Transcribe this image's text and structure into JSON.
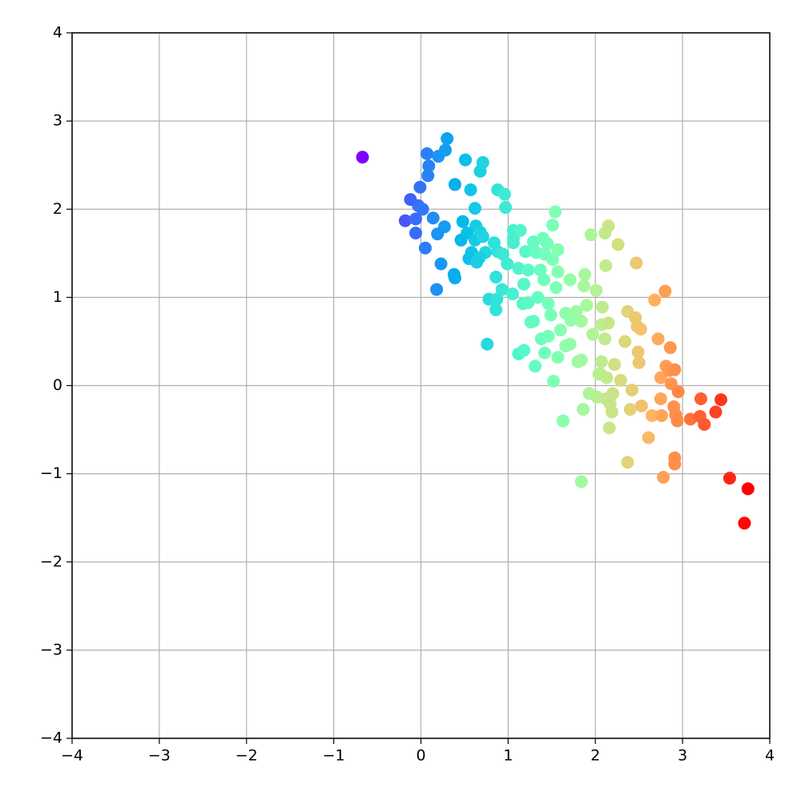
{
  "chart_data": {
    "type": "scatter",
    "colormap": "rainbow",
    "grid": true,
    "xlim": [
      -4,
      4
    ],
    "ylim": [
      -4,
      4
    ],
    "xticks": [
      {
        "value": -4,
        "label": "−4"
      },
      {
        "value": -3,
        "label": "−3"
      },
      {
        "value": -2,
        "label": "−2"
      },
      {
        "value": -1,
        "label": "−1"
      },
      0,
      1,
      2,
      3,
      4
    ],
    "yticks": [
      {
        "value": -4,
        "label": "−4"
      },
      {
        "value": -3,
        "label": "−3"
      },
      {
        "value": -2,
        "label": "−2"
      },
      {
        "value": -1,
        "label": "−1"
      },
      0,
      1,
      2,
      3,
      4
    ],
    "x": [
      -0.67,
      0.3,
      0.07,
      0.2,
      0.28,
      0.09,
      0.08,
      -0.01,
      -0.12,
      -0.03,
      0.02,
      -0.18,
      -0.06,
      0.14,
      0.27,
      0.19,
      -0.06,
      0.05,
      0.23,
      0.38,
      0.39,
      0.18,
      0.51,
      0.71,
      0.68,
      0.39,
      0.57,
      0.62,
      0.88,
      0.96,
      0.97,
      0.48,
      0.63,
      0.68,
      0.46,
      0.53,
      0.62,
      0.71,
      0.58,
      0.74,
      0.67,
      0.55,
      0.64,
      0.84,
      0.88,
      0.94,
      0.86,
      0.78,
      0.87,
      0.86,
      0.76,
      0.93,
      1.05,
      0.99,
      1.06,
      1.06,
      1.06,
      1.14,
      1.12,
      1.2,
      1.23,
      1.18,
      1.17,
      1.29,
      1.32,
      1.23,
      1.34,
      1.26,
      1.29,
      1.12,
      1.18,
      1.31,
      1.4,
      1.45,
      1.37,
      1.41,
      1.42,
      1.51,
      1.38,
      1.46,
      1.42,
      1.49,
      1.46,
      1.51,
      1.54,
      1.57,
      1.57,
      1.55,
      1.52,
      1.6,
      1.57,
      1.63,
      1.66,
      1.72,
      1.66,
      1.71,
      1.71,
      1.78,
      1.84,
      1.8,
      1.84,
      1.86,
      1.84,
      1.88,
      1.87,
      1.9,
      1.93,
      1.95,
      2.01,
      1.97,
      2.08,
      2.07,
      2.04,
      2.11,
      2.15,
      2.12,
      2.07,
      2.11,
      2.15,
      2.13,
      2.02,
      2.06,
      2.12,
      2.17,
      2.19,
      2.16,
      2.2,
      2.22,
      2.26,
      2.29,
      2.34,
      2.37,
      2.37,
      2.4,
      2.42,
      2.46,
      2.48,
      2.47,
      2.49,
      2.5,
      2.52,
      2.53,
      2.61,
      2.65,
      2.68,
      2.72,
      2.75,
      2.75,
      2.76,
      2.78,
      2.8,
      2.81,
      2.85,
      2.86,
      2.87,
      2.9,
      2.92,
      2.91,
      2.91,
      2.91,
      2.95,
      2.94,
      3.09,
      3.2,
      3.21,
      3.25,
      3.38,
      3.44,
      3.54,
      3.75,
      3.71
    ],
    "y": [
      2.59,
      2.8,
      2.63,
      2.6,
      2.67,
      2.49,
      2.38,
      2.25,
      2.11,
      2.04,
      2.0,
      1.87,
      1.89,
      1.9,
      1.8,
      1.72,
      1.73,
      1.56,
      1.38,
      1.26,
      1.22,
      1.09,
      2.56,
      2.53,
      2.43,
      2.28,
      2.22,
      2.01,
      2.22,
      2.17,
      2.02,
      1.86,
      1.81,
      1.74,
      1.65,
      1.73,
      1.65,
      1.69,
      1.51,
      1.51,
      1.45,
      1.44,
      1.4,
      1.62,
      1.52,
      1.49,
      1.23,
      0.98,
      0.98,
      0.86,
      0.47,
      1.09,
      1.04,
      1.38,
      1.76,
      1.67,
      1.62,
      1.76,
      1.33,
      1.52,
      1.31,
      1.15,
      0.93,
      1.63,
      1.51,
      0.94,
      1.0,
      0.72,
      0.73,
      0.36,
      0.4,
      0.22,
      1.67,
      1.61,
      1.31,
      1.2,
      1.49,
      1.43,
      0.53,
      0.56,
      0.37,
      0.8,
      0.93,
      1.82,
      1.97,
      1.54,
      1.29,
      1.11,
      0.05,
      0.63,
      0.32,
      -0.4,
      0.82,
      0.74,
      0.45,
      0.47,
      1.2,
      0.84,
      0.73,
      0.27,
      0.29,
      -0.27,
      -1.09,
      1.26,
      1.13,
      0.91,
      -0.09,
      1.71,
      1.08,
      0.58,
      0.89,
      0.27,
      0.13,
      1.73,
      1.81,
      1.36,
      0.69,
      0.53,
      0.71,
      0.09,
      -0.13,
      0.13,
      -0.15,
      -0.21,
      -0.3,
      -0.48,
      -0.09,
      0.24,
      1.6,
      0.06,
      0.5,
      0.84,
      -0.87,
      -0.27,
      -0.05,
      0.77,
      0.67,
      1.39,
      0.38,
      0.26,
      0.64,
      -0.23,
      -0.59,
      -0.34,
      0.97,
      0.53,
      0.09,
      -0.15,
      -0.34,
      -1.04,
      1.07,
      0.22,
      0.17,
      0.43,
      0.02,
      -0.24,
      -0.33,
      -0.82,
      -0.89,
      0.18,
      -0.07,
      -0.4,
      -0.38,
      -0.35,
      -0.15,
      -0.44,
      -0.3,
      -0.16,
      -1.05,
      -1.17,
      -1.56
    ]
  }
}
